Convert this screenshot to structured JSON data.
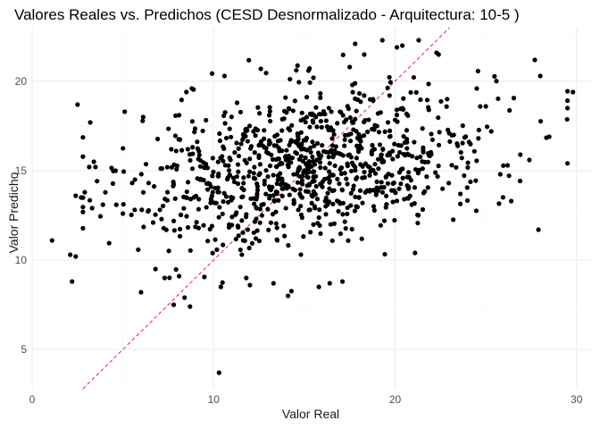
{
  "chart_data": {
    "type": "scatter",
    "title": "Valores Reales vs. Predichos (CESD Desnormalizado - Arquitectura: 10-5 )",
    "xlabel": "Valor Real",
    "ylabel": "Valor Predicho",
    "xlim": [
      0,
      30.8
    ],
    "ylim": [
      2.8,
      23.0
    ],
    "xticks": [
      0,
      10,
      20,
      30
    ],
    "yticks": [
      5,
      10,
      15,
      20
    ],
    "grid": true,
    "reference_line": {
      "label": "y = x",
      "style": "dashed",
      "color": "#e8203b"
    },
    "point_color": "#000000",
    "point_count": 1000,
    "sample_points": [
      [
        1.1,
        11.1
      ],
      [
        2.1,
        10.3
      ],
      [
        2.2,
        8.8
      ],
      [
        2.4,
        10.2
      ],
      [
        2.5,
        18.7
      ],
      [
        2.4,
        13.6
      ],
      [
        2.7,
        13.5
      ],
      [
        3.4,
        15.5
      ],
      [
        3.9,
        13.1
      ],
      [
        4.6,
        15.0
      ],
      [
        5.1,
        18.3
      ],
      [
        5.0,
        12.6
      ],
      [
        6.0,
        8.2
      ],
      [
        6.8,
        9.5
      ],
      [
        7.3,
        9.0
      ],
      [
        7.8,
        7.5
      ],
      [
        8.1,
        9.1
      ],
      [
        8.4,
        7.9
      ],
      [
        8.7,
        7.4
      ],
      [
        8.5,
        19.4
      ],
      [
        8.8,
        19.6
      ],
      [
        9.7,
        14.3
      ],
      [
        10.3,
        3.7
      ],
      [
        10.4,
        8.5
      ],
      [
        10.6,
        20.3
      ],
      [
        11.8,
        9.0
      ],
      [
        12.0,
        8.6
      ],
      [
        12.6,
        20.7
      ],
      [
        13.3,
        8.7
      ],
      [
        14.1,
        8.0
      ],
      [
        15.5,
        20.2
      ],
      [
        15.8,
        8.5
      ],
      [
        16.4,
        8.7
      ],
      [
        17.1,
        8.8
      ],
      [
        17.5,
        20.8
      ],
      [
        17.8,
        22.1
      ],
      [
        18.3,
        21.5
      ],
      [
        19.3,
        22.3
      ],
      [
        20.1,
        21.9
      ],
      [
        20.4,
        22.0
      ],
      [
        21.1,
        10.4
      ],
      [
        21.3,
        22.3
      ],
      [
        22.4,
        21.5
      ],
      [
        23.6,
        13.7
      ],
      [
        24.5,
        19.6
      ],
      [
        25.0,
        18.6
      ],
      [
        25.3,
        17.2
      ],
      [
        25.8,
        14.8
      ],
      [
        26.2,
        15.3
      ],
      [
        26.4,
        13.3
      ],
      [
        26.9,
        15.9
      ],
      [
        27.4,
        15.6
      ],
      [
        27.7,
        21.2
      ],
      [
        27.9,
        11.7
      ],
      [
        28.0,
        20.3
      ],
      [
        29.5,
        18.5
      ],
      [
        29.8,
        19.4
      ]
    ]
  }
}
